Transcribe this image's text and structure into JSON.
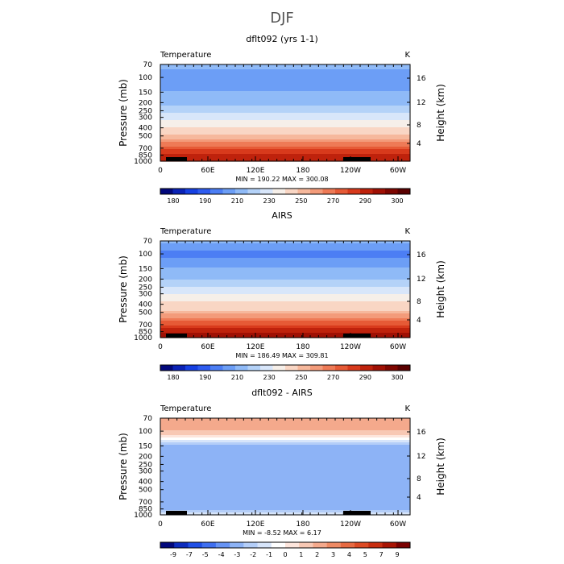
{
  "figure_title": "DJF",
  "colors": {
    "temp_scale": [
      "#02087c",
      "#0a22b6",
      "#1640e2",
      "#2e5cf0",
      "#4c7ef4",
      "#6c9ef6",
      "#8fbaf7",
      "#b4d2f8",
      "#d8e6fa",
      "#f6efe9",
      "#f9d6c4",
      "#f6b89c",
      "#f39b7a",
      "#ee7a56",
      "#e65a36",
      "#d83a1c",
      "#bf220c",
      "#a01004",
      "#7e0600",
      "#5a0000"
    ],
    "diff_scale": [
      "#02087c",
      "#0d2cbd",
      "#1f4fe6",
      "#3f6ff0",
      "#6693f4",
      "#8db3f6",
      "#b4cef8",
      "#d7e5fa",
      "#ffffff",
      "#fde5dc",
      "#f8c8b4",
      "#f4a98c",
      "#ee8a64",
      "#e76a42",
      "#dc4a24",
      "#c72d10",
      "#a81404",
      "#7a0000"
    ]
  },
  "chart_data": [
    {
      "type": "heatmap",
      "title": "dflt092 (yrs 1-1)",
      "corner_left": "Temperature",
      "corner_right": "K",
      "ylabel": "Pressure (mb)",
      "ylabel_right": "Height (km)",
      "pressure_ticks": [
        "70",
        "100",
        "150",
        "200",
        "250",
        "300",
        "400",
        "500",
        "700",
        "850",
        "1000"
      ],
      "height_ticks": [
        "16",
        "12",
        "8",
        "4"
      ],
      "x_ticks": [
        "0",
        "60E",
        "120E",
        "180",
        "120W",
        "60W"
      ],
      "stats": "MIN =  190.22   MAX =  300.08",
      "colorbar_labels": [
        "180",
        "190",
        "210",
        "230",
        "250",
        "270",
        "290",
        "300"
      ],
      "levels_K": [
        70,
        100,
        150,
        200,
        250,
        300,
        400,
        500,
        700,
        850,
        1000
      ],
      "profile_K": [
        214,
        205,
        210,
        216,
        226,
        238,
        251,
        262,
        278,
        286,
        291
      ]
    },
    {
      "type": "heatmap",
      "title": "AIRS",
      "corner_left": "Temperature",
      "corner_right": "K",
      "ylabel": "Pressure (mb)",
      "ylabel_right": "Height (km)",
      "pressure_ticks": [
        "70",
        "100",
        "150",
        "200",
        "250",
        "300",
        "400",
        "500",
        "700",
        "850",
        "1000"
      ],
      "height_ticks": [
        "16",
        "12",
        "8",
        "4"
      ],
      "x_ticks": [
        "0",
        "60E",
        "120E",
        "180",
        "120W",
        "60W"
      ],
      "stats": "MIN =  186.49   MAX =  309.81",
      "colorbar_labels": [
        "180",
        "190",
        "210",
        "230",
        "250",
        "270",
        "290",
        "300"
      ],
      "levels_K": [
        70,
        100,
        150,
        200,
        250,
        300,
        400,
        500,
        700,
        850,
        1000
      ],
      "profile_K": [
        212,
        196,
        210,
        218,
        230,
        240,
        252,
        263,
        280,
        288,
        294
      ]
    },
    {
      "type": "heatmap",
      "title": "dflt092 - AIRS",
      "corner_left": "Temperature",
      "corner_right": "K",
      "ylabel": "Pressure (mb)",
      "ylabel_right": "Height (km)",
      "pressure_ticks": [
        "70",
        "100",
        "150",
        "200",
        "250",
        "300",
        "400",
        "500",
        "700",
        "850",
        "1000"
      ],
      "height_ticks": [
        "16",
        "12",
        "8",
        "4"
      ],
      "x_ticks": [
        "0",
        "60E",
        "120E",
        "180",
        "120W",
        "60W"
      ],
      "stats": "MIN =   -8.52   MAX =    6.17",
      "colorbar_labels": [
        "-9",
        "-7",
        "-5",
        "-4",
        "-3",
        "-2",
        "-1",
        "0",
        "1",
        "2",
        "3",
        "4",
        "5",
        "7",
        "9"
      ],
      "levels_K": [
        70,
        100,
        150,
        200,
        250,
        300,
        400,
        500,
        700,
        850,
        1000
      ],
      "profile_K": [
        4,
        3,
        -2,
        -3,
        -2,
        -3,
        -2,
        -2,
        -2,
        -3,
        0
      ]
    }
  ]
}
